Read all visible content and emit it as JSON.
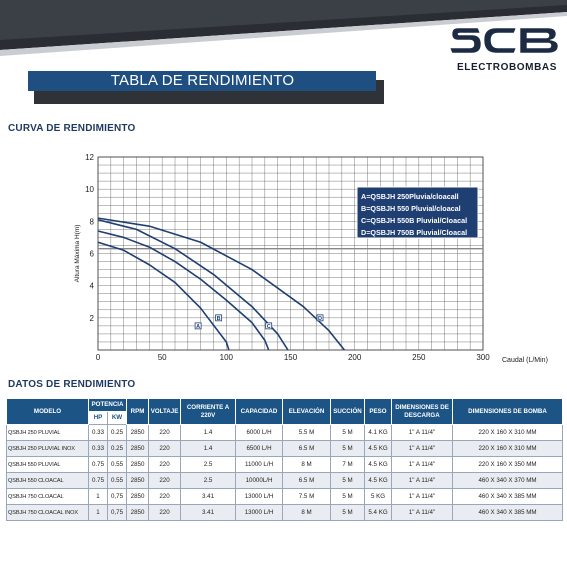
{
  "banner": {
    "title": "TABLA DE RENDIMIENTO"
  },
  "brand": {
    "logo_letters": "SCB",
    "name": "ELECTROBOMBAS",
    "color": "#1c2a44"
  },
  "curve_section": {
    "title": "CURVA DE RENDIMIENTO"
  },
  "data_section": {
    "title": "DATOS DE RENDIMIENTO"
  },
  "chart_data": {
    "type": "line",
    "title": "",
    "xlabel": "Caudal (L/Min)",
    "ylabel": "Altura Máxima H(m)",
    "xlim": [
      0,
      300
    ],
    "ylim": [
      0,
      12
    ],
    "xticks": [
      "0",
      "50",
      "100",
      "150",
      "200",
      "250",
      "300"
    ],
    "yticks": [
      "2",
      "4",
      "6",
      "8",
      "10",
      "12"
    ],
    "grid": true,
    "legend_position": "top-right",
    "line_color": "#1f3f73",
    "series": [
      {
        "name": "A=QSBJH 250Pluvia/cloacall",
        "marker": "A",
        "marker_point": [
          78,
          1.5
        ],
        "x": [
          0,
          20,
          40,
          60,
          80,
          100,
          102
        ],
        "y": [
          6.7,
          6.2,
          5.3,
          4.2,
          2.6,
          0.5,
          0
        ]
      },
      {
        "name": "B=QSBJH 550 Pluvial/cloacal",
        "marker": "B",
        "marker_point": [
          94,
          2.0
        ],
        "x": [
          0,
          20,
          40,
          60,
          80,
          100,
          120,
          130,
          133
        ],
        "y": [
          7.4,
          7.0,
          6.4,
          5.5,
          4.4,
          3.1,
          1.7,
          0.6,
          0
        ]
      },
      {
        "name": "C=QSBJH 550B Pluvial/Cloacal",
        "marker": "C",
        "marker_point": [
          133,
          1.5
        ],
        "x": [
          0,
          30,
          60,
          90,
          120,
          140,
          148
        ],
        "y": [
          8.1,
          7.5,
          6.3,
          4.7,
          2.7,
          1.0,
          0
        ]
      },
      {
        "name": "D=QSBJH 750B Pluvial/Cloacal",
        "marker": "D",
        "marker_point": [
          173,
          2.0
        ],
        "x": [
          0,
          40,
          80,
          120,
          160,
          180,
          192
        ],
        "y": [
          8.2,
          7.7,
          6.7,
          5.0,
          2.7,
          1.2,
          0
        ]
      }
    ]
  },
  "table": {
    "headers": {
      "modelo": "MODELO",
      "potencia": "POTENCIA",
      "hp": "HP",
      "kw": "KW",
      "rpm": "RPM",
      "voltaje": "VOLTAJE",
      "corriente": "CORRIENTE A 220V",
      "capacidad": "CAPACIDAD",
      "elevacion": "ELEVACIÓN",
      "succion": "SUCCIÓN",
      "peso": "PESO",
      "descarga": "DIMENSIONES DE DESCARGA",
      "bomba": "DIMENSIONES DE BOMBA"
    },
    "rows": [
      [
        "QSBJH 250 PLUVIAL",
        "0.33",
        "0.25",
        "2850",
        "220",
        "1.4",
        "6000 L/H",
        "5.5 M",
        "5 M",
        "4.1 KG",
        "1\" A 11/4\"",
        "220 X 160 X 310 MM"
      ],
      [
        "QSBJH 250 PLUVIAL INOX",
        "0.33",
        "0.25",
        "2850",
        "220",
        "1.4",
        "6500 L/H",
        "6.5 M",
        "5 M",
        "4.5 KG",
        "1\" A 11/4\"",
        "220 X 160 X 310 MM"
      ],
      [
        "QSBJH 550 PLUVIAL",
        "0.75",
        "0.55",
        "2850",
        "220",
        "2.5",
        "11000 L/H",
        "8 M",
        "7 M",
        "4.5 KG",
        "1\" A 11/4\"",
        "220 X 160 X 350 MM"
      ],
      [
        "QSBJH 550 CLOACAL",
        "0.75",
        "0.55",
        "2850",
        "220",
        "2.5",
        "10000L/H",
        "6.5 M",
        "5 M",
        "4.5 KG",
        "1\" A 11/4\"",
        "460 X 340 X 370 MM"
      ],
      [
        "QSBJH 750 CLOACAL",
        "1",
        "0,75",
        "2850",
        "220",
        "3.41",
        "13000 L/H",
        "7.5 M",
        "5 M",
        "5 KG",
        "1\" A 11/4\"",
        "460 X 340 X 385 MM"
      ],
      [
        "QSBJH 750 CLOACAL INOX",
        "1",
        "0,75",
        "2850",
        "220",
        "3.41",
        "13000 L/H",
        "8 M",
        "5 M",
        "5.4 KG",
        "1\" A 11/4\"",
        "460 X 340 X 385 MM"
      ]
    ]
  }
}
